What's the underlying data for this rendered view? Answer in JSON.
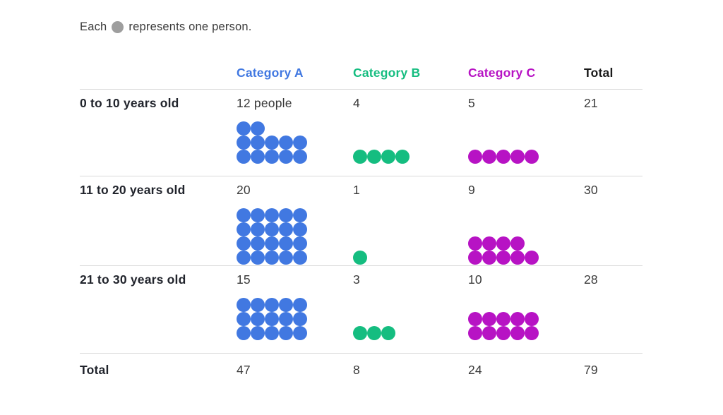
{
  "legend": {
    "prefix": "Each",
    "suffix": "represents one person.",
    "dot_color": "#9e9e9e"
  },
  "table": {
    "columns": [
      {
        "label": "Category A",
        "color": "#4178e1"
      },
      {
        "label": "Category B",
        "color": "#15bd80"
      },
      {
        "label": "Category C",
        "color": "#b713c4"
      },
      {
        "label": "Total",
        "color": "#1a1a1a"
      }
    ],
    "rows": [
      {
        "label": "0 to 10 years old",
        "a": {
          "text": "12 people",
          "count": 12
        },
        "b": {
          "text": "4",
          "count": 4
        },
        "c": {
          "text": "5",
          "count": 5
        },
        "total": "21"
      },
      {
        "label": "11 to 20 years old",
        "a": {
          "text": "20",
          "count": 20
        },
        "b": {
          "text": "1",
          "count": 1
        },
        "c": {
          "text": "9",
          "count": 9
        },
        "total": "30"
      },
      {
        "label": "21 to 30 years old",
        "a": {
          "text": "15",
          "count": 15
        },
        "b": {
          "text": "3",
          "count": 3
        },
        "c": {
          "text": "10",
          "count": 10
        },
        "total": "28"
      }
    ],
    "totals": {
      "label": "Total",
      "a": "47",
      "b": "8",
      "c": "24",
      "total": "79"
    }
  },
  "chart_data": {
    "type": "table",
    "subtype": "pictograph",
    "title": "Each dot represents one person.",
    "unit": "1 dot = 1 person",
    "dots_per_row": 5,
    "categories": [
      "0 to 10 years old",
      "11 to 20 years old",
      "21 to 30 years old"
    ],
    "series": [
      {
        "name": "Category A",
        "values": [
          12,
          20,
          15
        ],
        "total": 47,
        "color": "#4178e1"
      },
      {
        "name": "Category B",
        "values": [
          4,
          1,
          3
        ],
        "total": 8,
        "color": "#15bd80"
      },
      {
        "name": "Category C",
        "values": [
          5,
          9,
          10
        ],
        "total": 24,
        "color": "#b713c4"
      }
    ],
    "row_totals": [
      21,
      30,
      28
    ],
    "grand_total": 79
  }
}
